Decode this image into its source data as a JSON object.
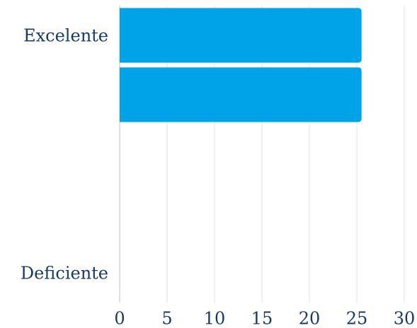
{
  "chart_data": {
    "type": "barh",
    "categories": [
      "Excelente",
      null,
      null,
      null,
      "Deficiente"
    ],
    "values": [
      25.5,
      25.5,
      0,
      0,
      0
    ],
    "color": "#00a3e8",
    "xlim": [
      0,
      30
    ],
    "xticks": [
      0,
      5,
      10,
      15,
      20,
      25,
      30
    ],
    "grid": true
  }
}
